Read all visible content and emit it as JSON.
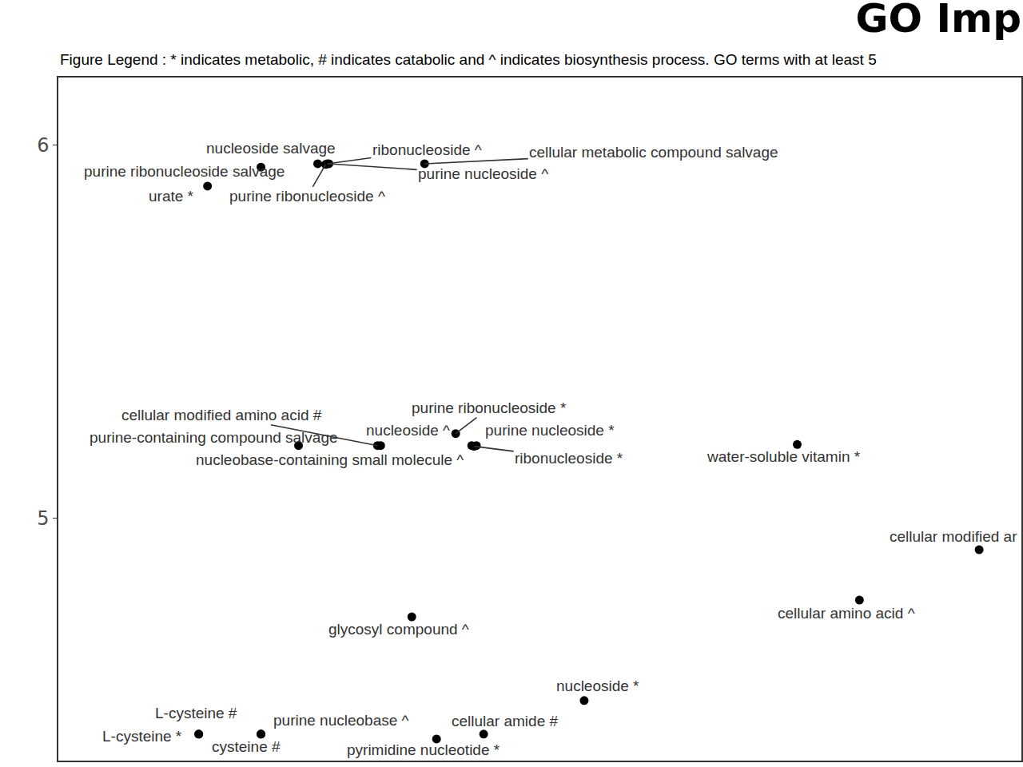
{
  "chart_data": {
    "type": "scatter",
    "title": "GO Imp",
    "subtitle": "Figure Legend : * indicates metabolic, # indicates catabolic and ^ indicates biosynthesis process. GO terms with at least 5",
    "labels": [
      "nucleoside salvage",
      "purine ribonucleoside salvage",
      "ribonucleoside ^",
      "purine nucleoside ^",
      "purine ribonucleoside ^",
      "cellular metabolic compound salvage",
      "urate *",
      "cellular modified amino acid #",
      "purine-containing compound salvage",
      "nucleobase-containing small molecule ^",
      "purine ribonucleoside *",
      "nucleoside ^",
      "purine nucleoside *",
      "ribonucleoside *",
      "water-soluble vitamin *",
      "cellular modified ar",
      "cellular amino acid ^",
      "glycosyl compound ^",
      "nucleoside *",
      "L-cysteine #",
      "L-cysteine *",
      "purine nucleobase ^",
      "cysteine #",
      "pyrimidine nucleotide *",
      "cellular amide #"
    ],
    "x": [
      21.04,
      26.93,
      27.92,
      28.1,
      27.75,
      38.03,
      15.49,
      33.14,
      24.94,
      33.47,
      41.26,
      42.92,
      43.41,
      43.17,
      76.72,
      95.61,
      83.18,
      36.7,
      54.6,
      14.58,
      14.58,
      21.04,
      21.04,
      39.27,
      44.16
    ],
    "y": [
      5.94,
      5.949,
      5.949,
      5.949,
      5.947,
      5.949,
      5.889,
      5.194,
      5.194,
      5.194,
      5.226,
      5.194,
      5.194,
      5.192,
      5.197,
      4.915,
      4.78,
      4.735,
      4.511,
      4.421,
      4.421,
      4.421,
      4.421,
      4.408,
      4.421
    ],
    "color": "#000000",
    "marker": "circle",
    "xlim": [
      0,
      100
    ],
    "ylim": [
      4.35,
      6.18
    ],
    "yticks": [
      5,
      6
    ],
    "tick_labels": "y",
    "grid": false
  }
}
